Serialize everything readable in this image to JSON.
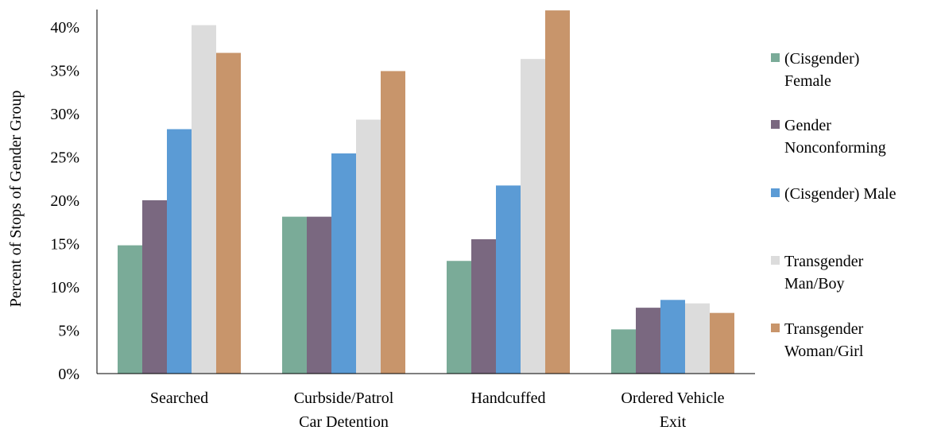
{
  "chart_data": {
    "type": "bar",
    "ylabel": "Percent of Stops of  Gender Group",
    "xlabel": "",
    "ylim": [
      0,
      42
    ],
    "yticks": [
      "0%",
      "5%",
      "10%",
      "15%",
      "20%",
      "25%",
      "30%",
      "35%",
      "40%"
    ],
    "ytick_values": [
      0,
      5,
      10,
      15,
      20,
      25,
      30,
      35,
      40
    ],
    "categories": [
      "Searched",
      "Curbside/Patrol\nCar Detention",
      "Handcuffed",
      "Ordered Vehicle\nExit"
    ],
    "series": [
      {
        "name": "(Cisgender)\nFemale",
        "color": "#7aab98",
        "values": [
          14.8,
          18.1,
          13.0,
          5.1
        ]
      },
      {
        "name": "Gender\nNonconforming",
        "color": "#7a6880",
        "values": [
          20.0,
          18.1,
          15.5,
          7.6
        ]
      },
      {
        "name": "(Cisgender) Male",
        "color": "#5b9bd5",
        "values": [
          28.2,
          25.4,
          21.7,
          8.5
        ]
      },
      {
        "name": "Transgender\nMan/Boy",
        "color": "#dcdcdc",
        "values": [
          40.2,
          29.3,
          36.3,
          8.1
        ]
      },
      {
        "name": "Transgender\nWoman/Girl",
        "color": "#c8956b",
        "values": [
          37.0,
          34.9,
          41.9,
          7.0
        ]
      }
    ],
    "grid": false,
    "legend_position": "right"
  }
}
